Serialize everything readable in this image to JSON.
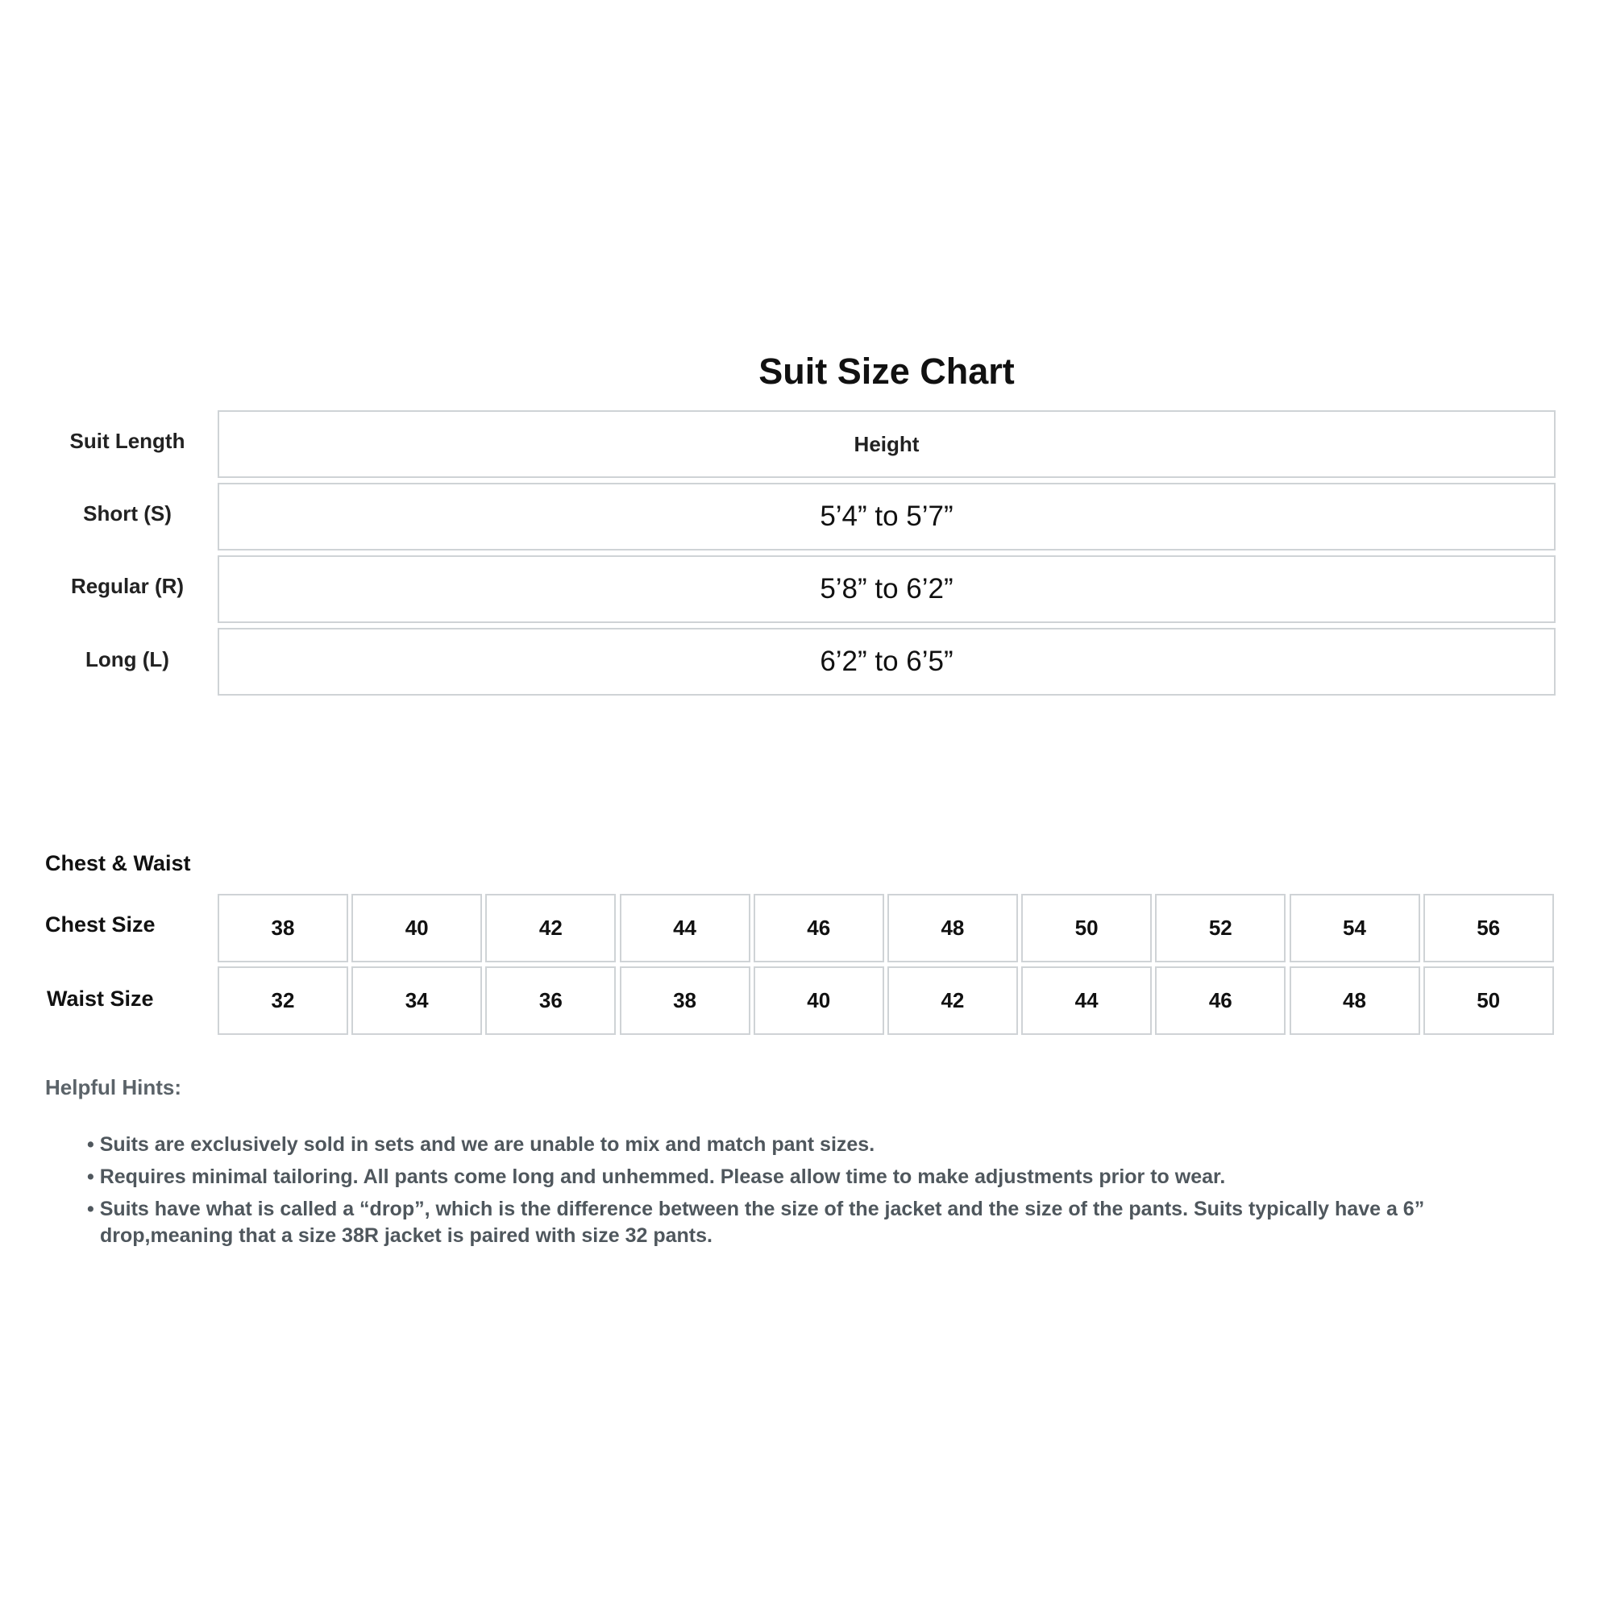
{
  "title": "Suit Size Chart",
  "length_table": {
    "header": {
      "label": "Suit Length",
      "value": "Height"
    },
    "rows": [
      {
        "label": "Short (S)",
        "value": "5’4” to 5’7”"
      },
      {
        "label": "Regular (R)",
        "value": "5’8” to 6’2”"
      },
      {
        "label": "Long (L)",
        "value": "6’2” to 6’5”"
      }
    ]
  },
  "chest_waist": {
    "heading": "Chest & Waist",
    "chest_label": "Chest Size",
    "waist_label": "Waist Size",
    "chest": [
      "38",
      "40",
      "42",
      "44",
      "46",
      "48",
      "50",
      "52",
      "54",
      "56"
    ],
    "waist": [
      "32",
      "34",
      "36",
      "38",
      "40",
      "42",
      "44",
      "46",
      "48",
      "50"
    ]
  },
  "hints": {
    "heading": "Helpful Hints:",
    "items": [
      "• Suits are exclusively sold in sets and we are unable to mix and match pant sizes.",
      "• Requires minimal tailoring. All pants come long and unhemmed. Please allow time to make adjustments prior to wear.",
      "• Suits have what is called a “drop”, which is the difference between the size of the jacket and the size of the pants. Suits typically have a 6” drop,meaning that a size 38R jacket is paired with size 32 pants."
    ]
  }
}
